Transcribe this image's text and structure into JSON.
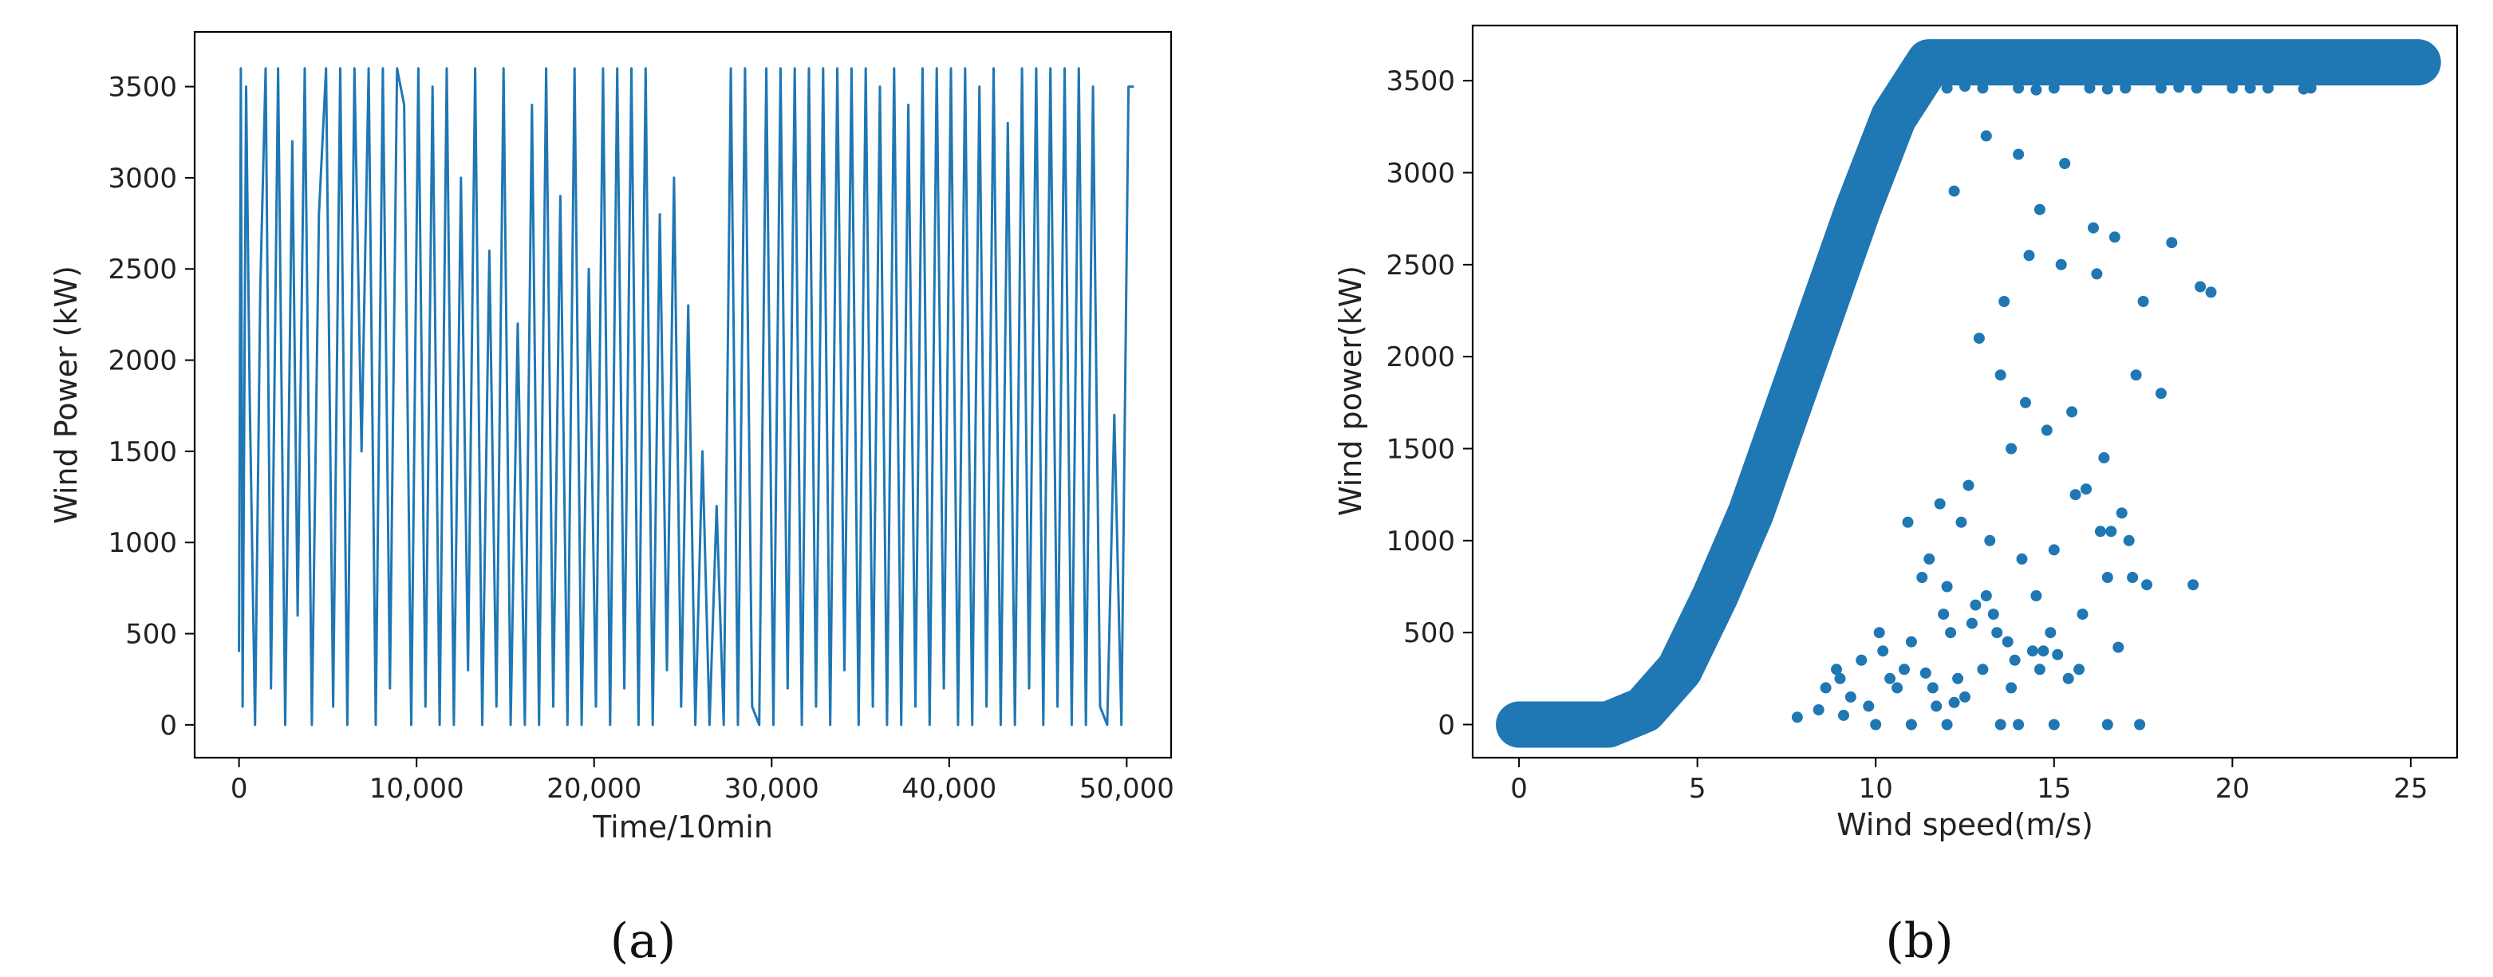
{
  "chart_data": [
    {
      "id": "a",
      "type": "line",
      "caption": "(a)",
      "xlabel": "Time/10min",
      "ylabel": "Wind Power (kW)",
      "xlim": [
        -2500,
        52500
      ],
      "ylim": [
        -180,
        3800
      ],
      "xticks": [
        0,
        10000,
        20000,
        30000,
        40000,
        50000
      ],
      "xtick_labels": [
        "0",
        "10,000",
        "20,000",
        "30,000",
        "40,000",
        "50,000"
      ],
      "yticks": [
        0,
        500,
        1000,
        1500,
        2000,
        2500,
        3000,
        3500
      ],
      "ytick_labels": [
        "0",
        "500",
        "1000",
        "1500",
        "2000",
        "2500",
        "3000",
        "3500"
      ],
      "color": "#1f77b4",
      "grid": false,
      "series": [
        {
          "x": [
            0,
            100,
            200,
            400,
            600,
            900,
            1200,
            1500,
            1800,
            2200,
            2600,
            3000,
            3300,
            3700,
            4100,
            4500,
            4900,
            5300,
            5700,
            6100,
            6500,
            6900,
            7300,
            7700,
            8100,
            8500,
            8900,
            9300,
            9700,
            10100,
            10500,
            10900,
            11300,
            11700,
            12100,
            12500,
            12900,
            13300,
            13700,
            14100,
            14500,
            14900,
            15300,
            15700,
            16100,
            16500,
            16900,
            17300,
            17700,
            18100,
            18500,
            18900,
            19300,
            19700,
            20100,
            20500,
            20900,
            21300,
            21700,
            22100,
            22500,
            22900,
            23300,
            23700,
            24100,
            24500,
            24900,
            25300,
            25700,
            26100,
            26500,
            26900,
            27300,
            27700,
            28100,
            28500,
            28900,
            29300,
            29700,
            30100,
            30500,
            30900,
            31300,
            31700,
            32100,
            32500,
            32900,
            33300,
            33700,
            34100,
            34500,
            34900,
            35300,
            35700,
            36100,
            36500,
            36900,
            37300,
            37700,
            38100,
            38500,
            38900,
            39300,
            39700,
            40100,
            40500,
            40900,
            41300,
            41700,
            42100,
            42500,
            42900,
            43300,
            43700,
            44100,
            44500,
            44900,
            45300,
            45700,
            46100,
            46500,
            46900,
            47300,
            47700,
            48100,
            48500,
            48900,
            49300,
            49700,
            50100,
            50400
          ],
          "y": [
            400,
            3600,
            100,
            3500,
            1800,
            0,
            2400,
            3600,
            200,
            3600,
            0,
            3200,
            600,
            3600,
            0,
            2800,
            3600,
            100,
            3600,
            0,
            3600,
            1500,
            3600,
            0,
            3600,
            200,
            3600,
            3400,
            0,
            3600,
            100,
            3500,
            0,
            3600,
            0,
            3000,
            300,
            3600,
            0,
            2600,
            100,
            3600,
            0,
            2200,
            0,
            3400,
            0,
            3600,
            100,
            2900,
            0,
            3600,
            0,
            2500,
            100,
            3600,
            0,
            3600,
            200,
            3600,
            0,
            3600,
            0,
            2800,
            300,
            3000,
            100,
            2300,
            0,
            1500,
            0,
            1200,
            0,
            3600,
            0,
            3600,
            100,
            0,
            3600,
            0,
            3600,
            200,
            3600,
            0,
            3600,
            100,
            3600,
            0,
            3600,
            300,
            3600,
            0,
            3600,
            100,
            3500,
            0,
            3600,
            0,
            3400,
            100,
            3600,
            0,
            3600,
            200,
            3600,
            0,
            3600,
            0,
            3500,
            100,
            3600,
            0,
            3300,
            0,
            3600,
            200,
            3600,
            0,
            3600,
            100,
            3600,
            0,
            3600,
            0,
            3500,
            100,
            0,
            1700,
            0,
            3500,
            3500
          ]
        }
      ]
    },
    {
      "id": "b",
      "type": "scatter",
      "caption": "(b)",
      "xlabel": "Wind speed(m/s)",
      "ylabel": "Wind power(kW)",
      "xlim": [
        -1.3,
        26.3
      ],
      "ylim": [
        -180,
        3800
      ],
      "xticks": [
        0,
        5,
        10,
        15,
        20,
        25
      ],
      "xtick_labels": [
        "0",
        "5",
        "10",
        "15",
        "20",
        "25"
      ],
      "yticks": [
        0,
        500,
        1000,
        1500,
        2000,
        2500,
        3000,
        3500
      ],
      "ytick_labels": [
        "0",
        "500",
        "1000",
        "1500",
        "2000",
        "2500",
        "3000",
        "3500"
      ],
      "color": "#1f77b4",
      "grid": false,
      "power_curve": {
        "x": [
          0,
          2.5,
          3.5,
          4.5,
          5.5,
          6.5,
          7.5,
          8.5,
          9.5,
          10.5,
          11.5,
          12.5,
          25.2
        ],
        "y": [
          0,
          0,
          80,
          300,
          700,
          1150,
          1700,
          2250,
          2800,
          3300,
          3600,
          3600,
          3600
        ]
      },
      "series": [
        {
          "x": [
            12.2,
            13.1,
            14.0,
            14.6,
            15.3,
            16.1,
            16.7,
            17.5,
            18.3,
            19.1,
            19.4,
            18.0,
            17.3,
            15.2,
            16.2,
            14.3,
            13.6,
            12.9,
            13.5,
            14.2,
            15.5,
            16.4,
            17.1,
            14.8,
            13.8,
            12.6,
            11.8,
            12.4,
            13.2,
            14.1,
            15.0,
            15.9,
            16.6,
            17.2,
            14.5,
            13.3,
            12.1,
            11.5,
            10.9,
            11.3,
            12.0,
            12.8,
            13.7,
            14.4,
            15.1,
            15.8,
            16.5,
            17.6,
            18.9,
            16.9,
            15.6,
            14.9,
            13.9,
            13.0,
            12.3,
            11.6,
            10.8,
            10.2,
            9.6,
            9.0,
            8.6,
            9.3,
            10.1,
            11.0,
            11.9,
            12.7,
            13.4,
            14.7,
            15.7,
            16.3,
            13.1,
            12.5,
            11.7,
            10.6,
            9.8,
            9.1,
            8.4,
            7.8,
            8.9,
            10.4,
            11.4,
            12.2,
            13.8,
            14.6,
            15.4,
            16.8
          ],
          "y": [
            2900,
            3200,
            3100,
            2800,
            3050,
            2700,
            2650,
            2300,
            2620,
            2380,
            2350,
            1800,
            1900,
            2500,
            2450,
            2550,
            2300,
            2100,
            1900,
            1750,
            1700,
            1450,
            1000,
            1600,
            1500,
            1300,
            1200,
            1100,
            1000,
            900,
            950,
            1280,
            1050,
            800,
            700,
            600,
            500,
            900,
            1100,
            800,
            750,
            650,
            450,
            400,
            380,
            600,
            800,
            760,
            760,
            1150,
            1250,
            500,
            350,
            300,
            250,
            200,
            300,
            400,
            350,
            250,
            200,
            150,
            500,
            450,
            600,
            550,
            500,
            400,
            300,
            1050,
            700,
            150,
            100,
            200,
            100,
            50,
            80,
            40,
            300,
            250,
            280,
            120,
            200,
            300,
            250,
            420
          ]
        },
        {
          "x": [
            12.0,
            13.0,
            14.0,
            15.0,
            16.0,
            17.0,
            18.0,
            19.0,
            20.0,
            21.0,
            22.2,
            12.5,
            14.5,
            16.5,
            18.5,
            20.5,
            22.0
          ],
          "y": [
            3460,
            3460,
            3460,
            3460,
            3460,
            3460,
            3460,
            3460,
            3460,
            3460,
            3460,
            3470,
            3450,
            3455,
            3465,
            3460,
            3455
          ]
        },
        {
          "x": [
            12.0,
            13.5,
            15.0,
            16.5,
            17.4,
            11.0,
            10.0,
            14.0
          ],
          "y": [
            0,
            0,
            0,
            0,
            0,
            0,
            0,
            0
          ]
        }
      ]
    }
  ]
}
